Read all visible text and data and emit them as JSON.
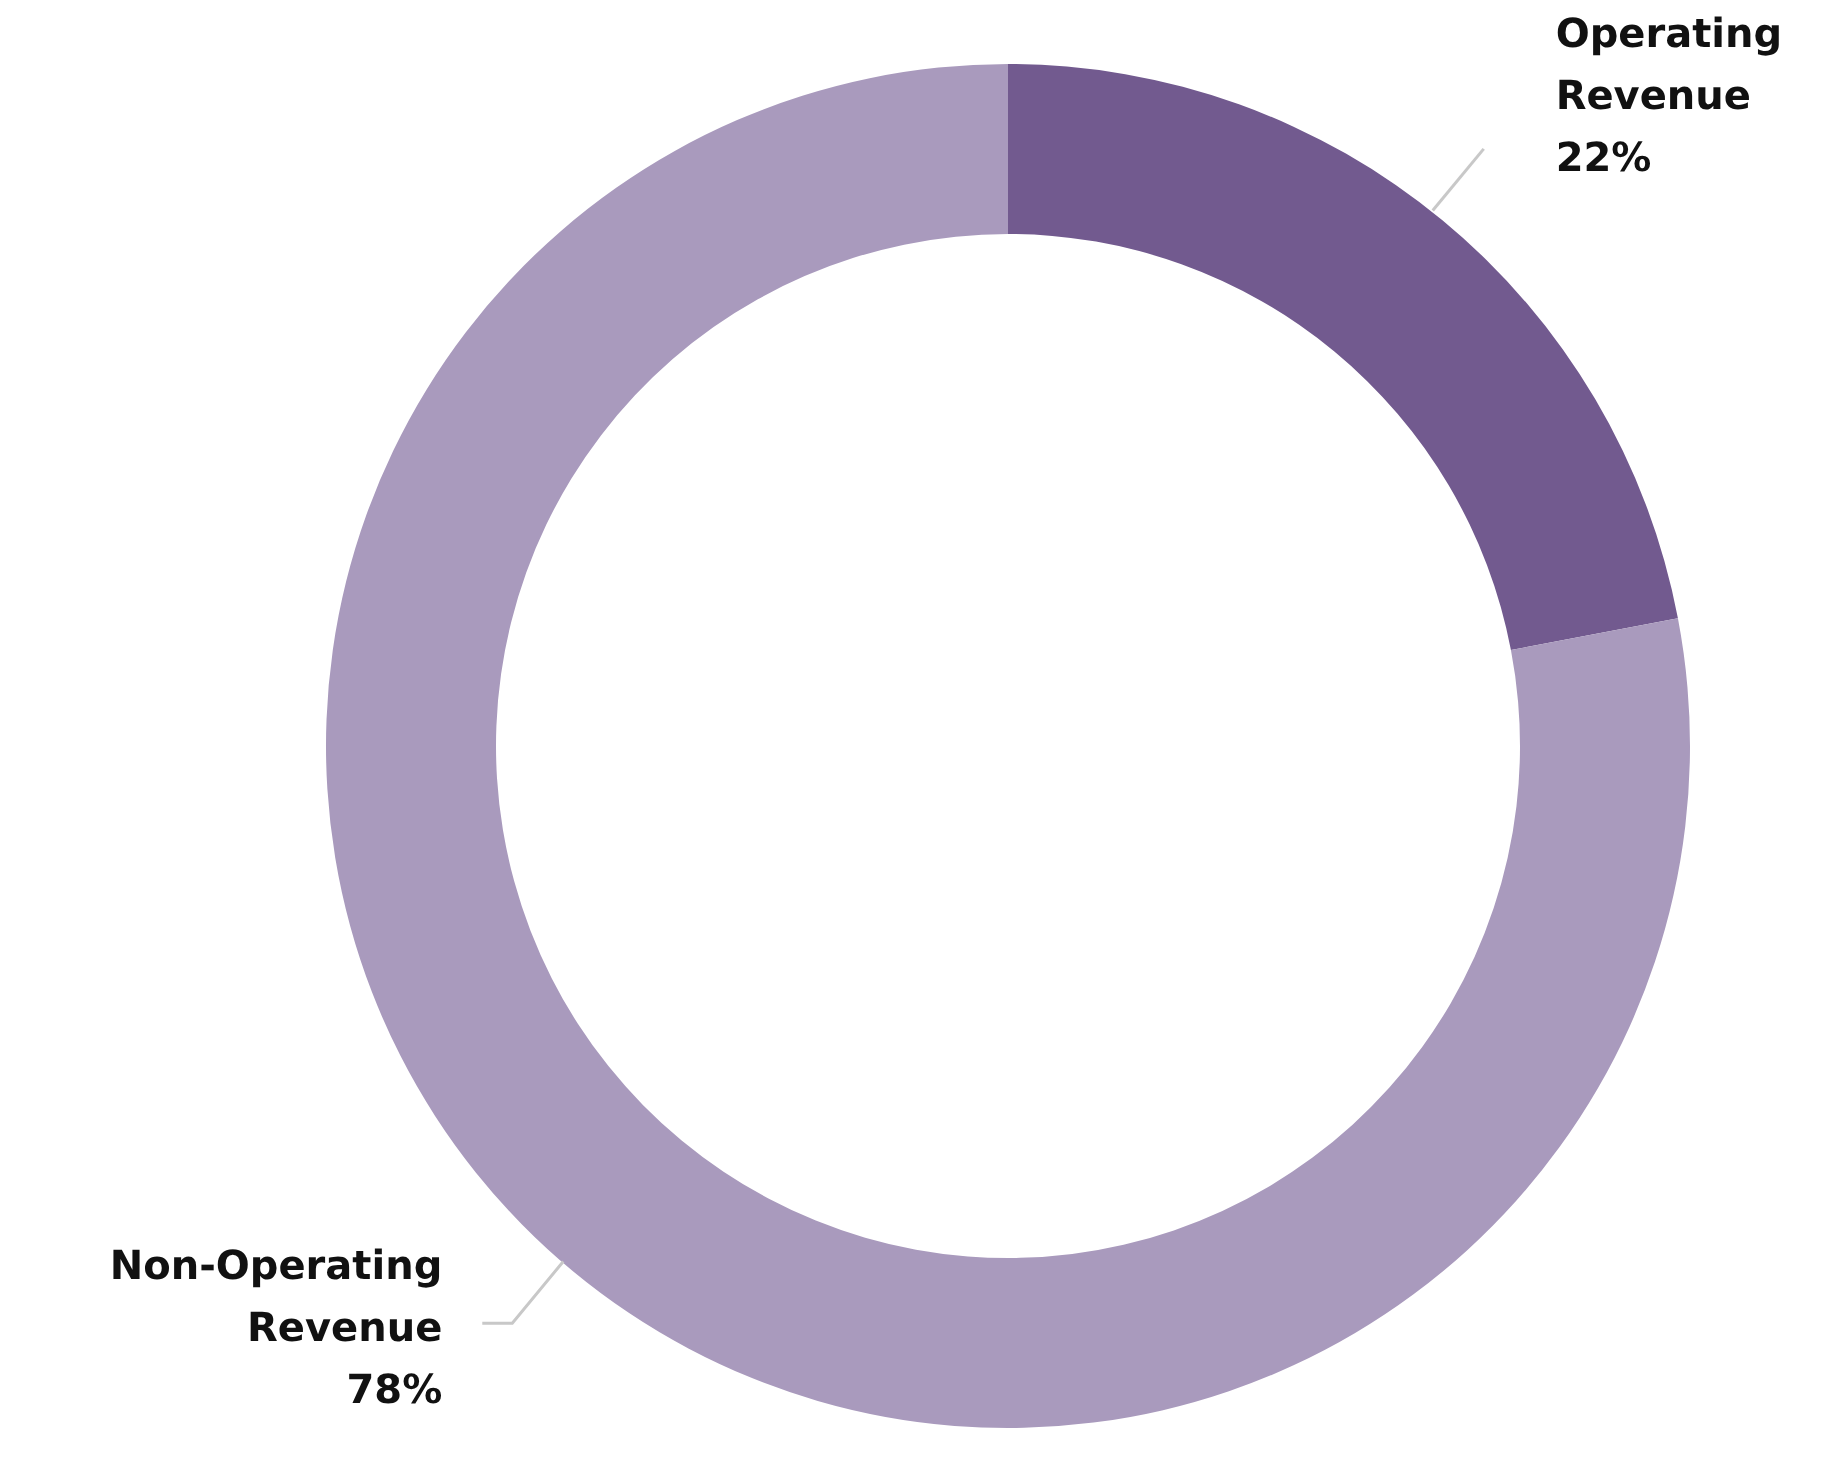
{
  "chart_data": {
    "type": "donut",
    "categories": [
      "Operating Revenue",
      "Non-Operating Revenue"
    ],
    "values": [
      22,
      78
    ],
    "value_labels": [
      "22%",
      "78%"
    ],
    "colors": [
      "#725a8f",
      "#a99abd"
    ],
    "legend": false
  }
}
